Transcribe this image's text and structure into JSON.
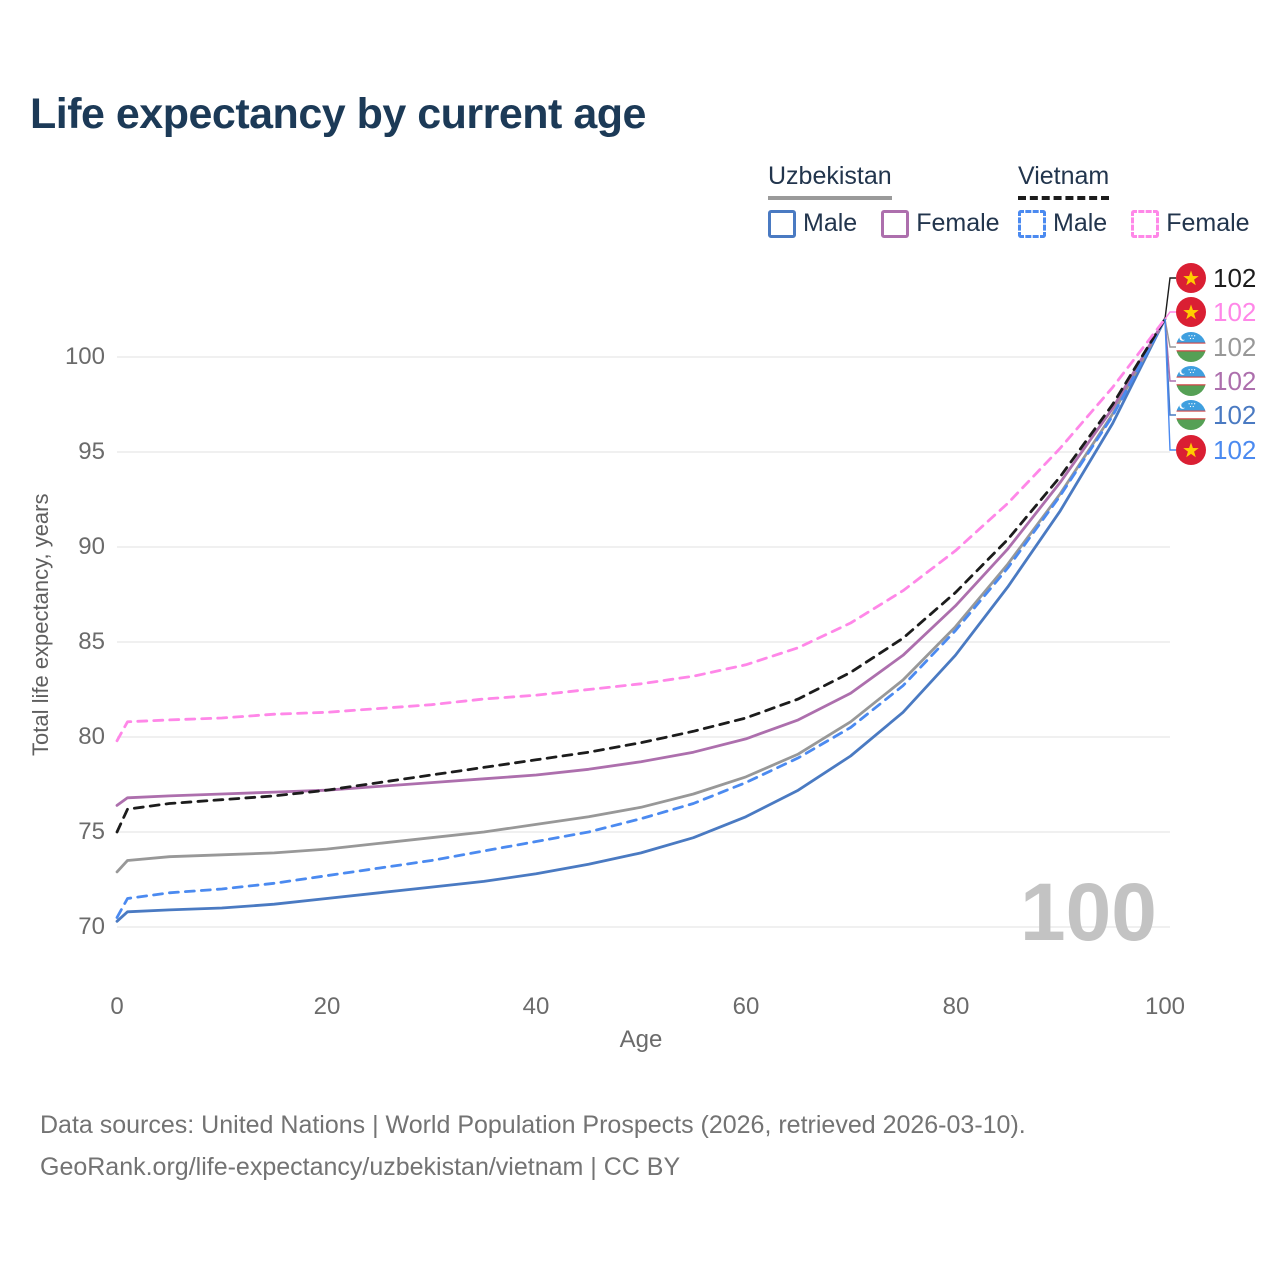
{
  "title": "Life expectancy by current age",
  "legend": {
    "groups": [
      {
        "name": "Uzbekistan",
        "line_style": "solid",
        "underline_color": "#9a9a9a",
        "items": [
          {
            "label": "Male",
            "color": "#4a7ac2"
          },
          {
            "label": "Female",
            "color": "#ad6fad"
          }
        ]
      },
      {
        "name": "Vietnam",
        "line_style": "dashed",
        "underline_color": "#1c1c1c",
        "items": [
          {
            "label": "Male",
            "color": "#4b8af0"
          },
          {
            "label": "Female",
            "color": "#ff87e8"
          }
        ]
      }
    ]
  },
  "chart_data": {
    "type": "line",
    "title": "Life expectancy by current age",
    "xlabel": "Age",
    "ylabel": "Total life expectancy, years",
    "xlim": [
      0,
      100
    ],
    "ylim": [
      68.5,
      103.5
    ],
    "xticks": [
      "0",
      "20",
      "40",
      "60",
      "80",
      "100"
    ],
    "xtick_values": [
      0,
      20,
      40,
      60,
      80,
      100
    ],
    "yticks": [
      "70",
      "75",
      "80",
      "85",
      "90",
      "95",
      "100"
    ],
    "ytick_values": [
      70,
      75,
      80,
      85,
      90,
      95,
      100
    ],
    "grid": "horizontal",
    "legend_position": "top-right",
    "x": [
      0,
      1,
      5,
      10,
      15,
      20,
      25,
      30,
      35,
      40,
      45,
      50,
      55,
      60,
      65,
      70,
      75,
      80,
      85,
      90,
      95,
      100
    ],
    "series": [
      {
        "name": "Uzbekistan Male",
        "country": "Uzbekistan",
        "sex": "male",
        "color": "#4a7ac2",
        "dash": "solid",
        "values": [
          70.3,
          70.8,
          70.9,
          71.0,
          71.2,
          71.5,
          71.8,
          72.1,
          72.4,
          72.8,
          73.3,
          73.9,
          74.7,
          75.8,
          77.2,
          79.0,
          81.3,
          84.3,
          87.9,
          91.9,
          96.5,
          102
        ]
      },
      {
        "name": "Uzbekistan Total",
        "country": "Uzbekistan",
        "sex": "both",
        "color": "#989898",
        "dash": "solid",
        "values": [
          72.9,
          73.5,
          73.7,
          73.8,
          73.9,
          74.1,
          74.4,
          74.7,
          75.0,
          75.4,
          75.8,
          76.3,
          77.0,
          77.9,
          79.1,
          80.8,
          83.0,
          85.8,
          89.1,
          92.8,
          97.0,
          102
        ]
      },
      {
        "name": "Uzbekistan Female",
        "country": "Uzbekistan",
        "sex": "female",
        "color": "#ad6fad",
        "dash": "solid",
        "values": [
          76.4,
          76.8,
          76.9,
          77.0,
          77.1,
          77.2,
          77.4,
          77.6,
          77.8,
          78.0,
          78.3,
          78.7,
          79.2,
          79.9,
          80.9,
          82.3,
          84.3,
          86.9,
          89.9,
          93.4,
          97.3,
          102
        ]
      },
      {
        "name": "Vietnam Male",
        "country": "Vietnam",
        "sex": "male",
        "color": "#4b8af0",
        "dash": "dashed",
        "values": [
          70.5,
          71.5,
          71.8,
          72.0,
          72.3,
          72.7,
          73.1,
          73.5,
          74.0,
          74.5,
          75.0,
          75.7,
          76.5,
          77.6,
          78.9,
          80.5,
          82.7,
          85.6,
          88.9,
          92.7,
          96.9,
          102
        ]
      },
      {
        "name": "Vietnam Total",
        "country": "Vietnam",
        "sex": "both",
        "color": "#1c1c1c",
        "dash": "dashed",
        "values": [
          75.0,
          76.2,
          76.5,
          76.7,
          76.9,
          77.2,
          77.6,
          78.0,
          78.4,
          78.8,
          79.2,
          79.7,
          80.3,
          81.0,
          82.0,
          83.4,
          85.2,
          87.6,
          90.4,
          93.7,
          97.5,
          102
        ]
      },
      {
        "name": "Vietnam Female",
        "country": "Vietnam",
        "sex": "female",
        "color": "#ff87e8",
        "dash": "dashed",
        "values": [
          79.8,
          80.8,
          80.9,
          81.0,
          81.2,
          81.3,
          81.5,
          81.7,
          82.0,
          82.2,
          82.5,
          82.8,
          83.2,
          83.8,
          84.7,
          86.0,
          87.7,
          89.8,
          92.3,
          95.2,
          98.4,
          102
        ]
      }
    ]
  },
  "end_labels": [
    {
      "value": "102",
      "flag": "vietnam",
      "series": "Vietnam Total",
      "color": "#1c1c1c"
    },
    {
      "value": "102",
      "flag": "vietnam",
      "series": "Vietnam Female",
      "color": "#ff87e8"
    },
    {
      "value": "102",
      "flag": "uzbekistan",
      "series": "Uzbekistan Total",
      "color": "#989898"
    },
    {
      "value": "102",
      "flag": "uzbekistan",
      "series": "Uzbekistan Female",
      "color": "#ad6fad"
    },
    {
      "value": "102",
      "flag": "uzbekistan",
      "series": "Uzbekistan Male",
      "color": "#4a7ac2"
    },
    {
      "value": "102",
      "flag": "vietnam",
      "series": "Vietnam Male",
      "color": "#4b8af0"
    }
  ],
  "age_ticker": "100",
  "footer": {
    "line1": "Data sources: United Nations | World Population Prospects (2026, retrieved 2026-03-10).",
    "line2": "GeoRank.org/life-expectancy/uzbekistan/vietnam | CC BY"
  },
  "colors": {
    "title": "#1c3a57",
    "grid": "#e8e8e8",
    "axis_text": "#6b6b6b",
    "watermark": "#c3c3c3",
    "vietnam_flag_red": "#da1f33",
    "vietnam_flag_star": "#ffcd00",
    "uzbekistan_flag_blue": "#3f9fdf",
    "uzbekistan_flag_green": "#55a055",
    "uzbekistan_flag_red": "#d04545"
  }
}
